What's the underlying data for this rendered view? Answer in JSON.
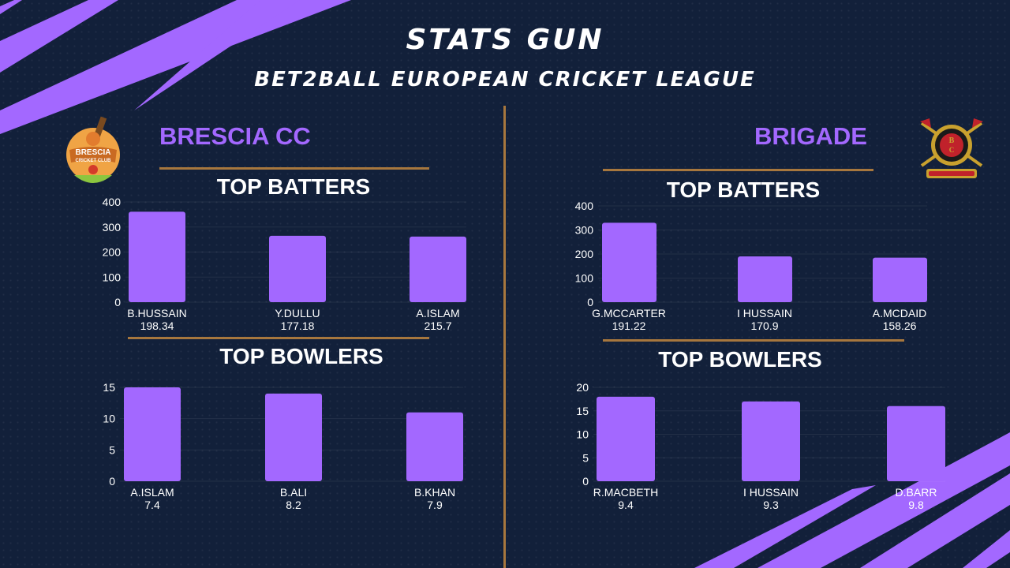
{
  "header": {
    "title": "STATS GUN",
    "subtitle": "BET2BALL EUROPEAN CRICKET LEAGUE"
  },
  "colors": {
    "background": "#12203a",
    "accent": "#a368ff",
    "gold": "#a7773e",
    "bar": "#a368ff",
    "text": "#ffffff"
  },
  "left_team": {
    "name": "BRESCIA CC",
    "logo": {
      "icon": "brescia-cricket-club-logo",
      "line1": "BRESCIA",
      "line2": "CRICKET CLUB"
    },
    "batters_title": "TOP BATTERS",
    "bowlers_title": "TOP BOWLERS"
  },
  "right_team": {
    "name": "BRIGADE",
    "logo": {
      "icon": "brigade-cricket-club-crest"
    },
    "batters_title": "TOP BATTERS",
    "bowlers_title": "TOP BOWLERS"
  },
  "chart_data": [
    {
      "id": "brescia-batters",
      "type": "bar",
      "title": "TOP BATTERS",
      "categories": [
        "B.HUSSAIN",
        "Y.DULLU",
        "A.ISLAM"
      ],
      "sublabels": [
        "198.34",
        "177.18",
        "215.7"
      ],
      "values": [
        361,
        265,
        262
      ],
      "ylim": [
        0,
        400
      ],
      "yticks": [
        0,
        100,
        200,
        300,
        400
      ],
      "grid": true
    },
    {
      "id": "brescia-bowlers",
      "type": "bar",
      "title": "TOP BOWLERS",
      "categories": [
        "A.ISLAM",
        "B.ALI",
        "B.KHAN"
      ],
      "sublabels": [
        "7.4",
        "8.2",
        "7.9"
      ],
      "values": [
        15,
        14,
        11
      ],
      "ylim": [
        0,
        15
      ],
      "yticks": [
        0,
        5,
        10,
        15
      ],
      "grid": true
    },
    {
      "id": "brigade-batters",
      "type": "bar",
      "title": "TOP BATTERS",
      "categories": [
        "G.MCCARTER",
        "I HUSSAIN",
        "A.MCDAID"
      ],
      "sublabels": [
        "191.22",
        "170.9",
        "158.26"
      ],
      "values": [
        330,
        190,
        185
      ],
      "ylim": [
        0,
        400
      ],
      "yticks": [
        0,
        100,
        200,
        300,
        400
      ],
      "grid": true
    },
    {
      "id": "brigade-bowlers",
      "type": "bar",
      "title": "TOP BOWLERS",
      "categories": [
        "R.MACBETH",
        "I HUSSAIN",
        "D.BARR"
      ],
      "sublabels": [
        "9.4",
        "9.3",
        "9.8"
      ],
      "values": [
        18,
        17,
        16
      ],
      "ylim": [
        0,
        20
      ],
      "yticks": [
        0,
        5,
        10,
        15,
        20
      ],
      "grid": true
    }
  ]
}
